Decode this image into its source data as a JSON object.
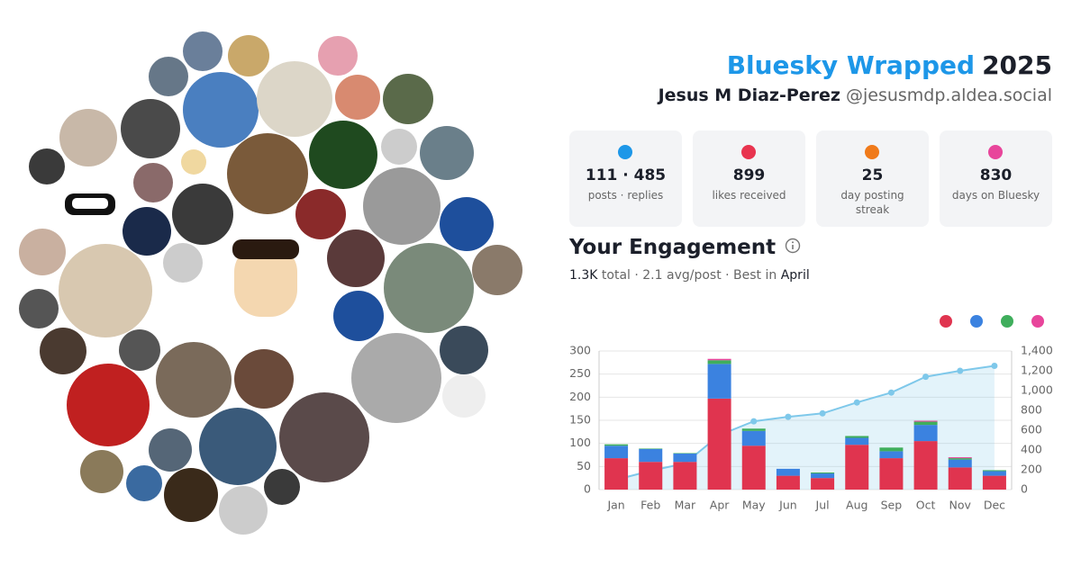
{
  "header": {
    "title": "Bluesky Wrapped",
    "year": "2025",
    "name": "Jesus M Diaz-Perez",
    "handle": "@jesusmdp.aldea.social"
  },
  "stats": [
    {
      "value": "111 · 485",
      "label": "posts · replies"
    },
    {
      "value": "899",
      "label": "likes received"
    },
    {
      "value": "25",
      "label": "day posting streak"
    },
    {
      "value": "830",
      "label": "days on Bluesky"
    }
  ],
  "engagement": {
    "title": "Your Engagement",
    "total": "1.3K",
    "summary": "total · 2.1 avg/post · Best in",
    "best": "April"
  },
  "chart_data": {
    "type": "bar",
    "stacked": true,
    "categories": [
      "Jan",
      "Feb",
      "Mar",
      "Apr",
      "May",
      "Jun",
      "Jul",
      "Aug",
      "Sep",
      "Oct",
      "Nov",
      "Dec"
    ],
    "series": [
      {
        "color": "#e0344f",
        "values": [
          68,
          60,
          60,
          197,
          95,
          30,
          25,
          97,
          68,
          105,
          48,
          30
        ]
      },
      {
        "color": "#3b82e0",
        "values": [
          27,
          28,
          18,
          75,
          32,
          15,
          10,
          15,
          15,
          35,
          17,
          10
        ]
      },
      {
        "color": "#3fae5c",
        "values": [
          3,
          1,
          1,
          8,
          5,
          0,
          2,
          4,
          8,
          7,
          3,
          2
        ]
      },
      {
        "color": "#e8459b",
        "values": [
          0,
          0,
          0,
          3,
          0,
          0,
          0,
          0,
          0,
          2,
          2,
          0
        ]
      },
      {
        "type": "area",
        "axis": "y2",
        "color": "#7ec8ea",
        "values": [
          100,
          190,
          265,
          550,
          690,
          735,
          770,
          880,
          980,
          1140,
          1200,
          1250
        ]
      }
    ],
    "ylim": [
      0,
      300
    ],
    "yticks": [
      0,
      50,
      100,
      150,
      200,
      250,
      300
    ],
    "y2lim": [
      0,
      1400
    ],
    "y2ticks": [
      0,
      200,
      400,
      600,
      800,
      {
        "value": 1000,
        "label": "1,000"
      },
      {
        "value": 1200,
        "label": "1,200"
      },
      {
        "value": 1400,
        "label": "1,400"
      }
    ],
    "grid": true,
    "legend": "top-right"
  }
}
